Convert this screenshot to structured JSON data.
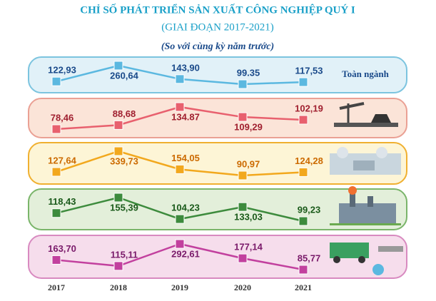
{
  "chart_data": {
    "type": "line",
    "title": "CHỈ SỐ PHÁT TRIỂN SẢN XUẤT CÔNG NGHIỆP QUÝ I",
    "subtitle": "(GIAI ĐOẠN 2017-2021)",
    "note": "(So với cùng kỳ năm trước)",
    "categories": [
      "2017",
      "2018",
      "2019",
      "2020",
      "2021"
    ],
    "series": [
      {
        "name": "Toàn ngành",
        "color": "#5bb8e0",
        "values": [
          122.93,
          260.64,
          143.9,
          99.35,
          117.53
        ],
        "value_labels": [
          "122,93",
          "260,64",
          "143,90",
          "99.35",
          "117,53"
        ]
      },
      {
        "color": "#e8606e",
        "values": [
          78.46,
          88.68,
          134.87,
          109.29,
          102.19
        ],
        "value_labels": [
          "78,46",
          "88,68",
          "134.87",
          "109,29",
          "102,19"
        ]
      },
      {
        "color": "#f2a81d",
        "values": [
          127.64,
          339.73,
          154.05,
          90.97,
          124.28
        ],
        "value_labels": [
          "127,64",
          "339,73",
          "154,05",
          "90,97",
          "124,28"
        ]
      },
      {
        "color": "#3d8b3d",
        "values": [
          118.43,
          155.39,
          104.23,
          133.03,
          99.23
        ],
        "value_labels": [
          "118,43",
          "155,39",
          "104,23",
          "133,03",
          "99,23"
        ]
      },
      {
        "color": "#c2409e",
        "values": [
          163.7,
          115.11,
          292.61,
          177.14,
          85.77
        ],
        "value_labels": [
          "163,70",
          "115,11",
          "292,61",
          "177,14",
          "85,77"
        ]
      }
    ]
  }
}
